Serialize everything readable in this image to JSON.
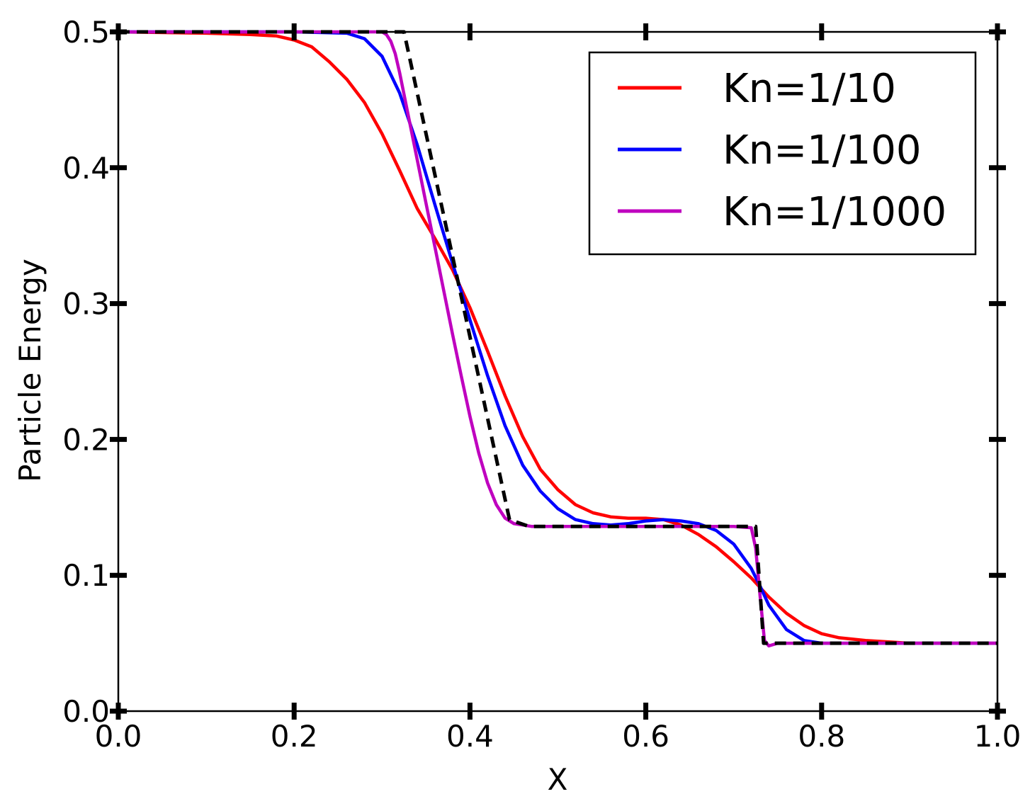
{
  "chart_data": {
    "type": "line",
    "title": "",
    "xlabel": "X",
    "ylabel": "Particle Energy",
    "xlim": [
      0.0,
      1.0
    ],
    "ylim": [
      0.0,
      0.5
    ],
    "x_ticks": [
      "0.0",
      "0.2",
      "0.4",
      "0.6",
      "0.8",
      "1.0"
    ],
    "y_ticks": [
      "0.0",
      "0.1",
      "0.2",
      "0.3",
      "0.4",
      "0.5"
    ],
    "grid": false,
    "legend_position": "top-right",
    "series": [
      {
        "name": "Kn=1/10",
        "color": "#ff0000",
        "style": "solid",
        "x": [
          0.0,
          0.1,
          0.15,
          0.18,
          0.2,
          0.22,
          0.24,
          0.26,
          0.28,
          0.3,
          0.32,
          0.34,
          0.36,
          0.38,
          0.4,
          0.42,
          0.44,
          0.46,
          0.48,
          0.5,
          0.52,
          0.54,
          0.56,
          0.58,
          0.6,
          0.62,
          0.64,
          0.66,
          0.68,
          0.7,
          0.72,
          0.74,
          0.76,
          0.78,
          0.8,
          0.82,
          0.85,
          0.9,
          1.0
        ],
        "y": [
          0.5,
          0.499,
          0.498,
          0.497,
          0.494,
          0.489,
          0.478,
          0.465,
          0.448,
          0.425,
          0.398,
          0.37,
          0.348,
          0.325,
          0.297,
          0.265,
          0.232,
          0.202,
          0.178,
          0.163,
          0.152,
          0.146,
          0.143,
          0.142,
          0.142,
          0.141,
          0.137,
          0.13,
          0.121,
          0.11,
          0.098,
          0.084,
          0.072,
          0.063,
          0.057,
          0.054,
          0.052,
          0.05,
          0.05
        ]
      },
      {
        "name": "Kn=1/100",
        "color": "#0000ff",
        "style": "solid",
        "x": [
          0.0,
          0.2,
          0.26,
          0.28,
          0.3,
          0.32,
          0.34,
          0.36,
          0.38,
          0.4,
          0.42,
          0.44,
          0.46,
          0.48,
          0.5,
          0.52,
          0.54,
          0.56,
          0.58,
          0.6,
          0.62,
          0.64,
          0.66,
          0.68,
          0.7,
          0.72,
          0.73,
          0.74,
          0.76,
          0.78,
          0.8,
          1.0
        ],
        "y": [
          0.5,
          0.5,
          0.499,
          0.495,
          0.482,
          0.455,
          0.417,
          0.373,
          0.33,
          0.288,
          0.247,
          0.21,
          0.181,
          0.162,
          0.149,
          0.141,
          0.138,
          0.137,
          0.138,
          0.14,
          0.141,
          0.14,
          0.138,
          0.133,
          0.123,
          0.105,
          0.092,
          0.078,
          0.06,
          0.052,
          0.05,
          0.05
        ]
      },
      {
        "name": "Kn=1/1000",
        "color": "#bf00bf",
        "style": "solid",
        "x": [
          0.0,
          0.3,
          0.305,
          0.31,
          0.315,
          0.32,
          0.33,
          0.34,
          0.35,
          0.36,
          0.37,
          0.38,
          0.39,
          0.4,
          0.41,
          0.42,
          0.43,
          0.44,
          0.45,
          0.46,
          0.47,
          0.5,
          0.6,
          0.7,
          0.72,
          0.725,
          0.73,
          0.735,
          0.74,
          0.75,
          1.0
        ],
        "y": [
          0.5,
          0.5,
          0.498,
          0.493,
          0.484,
          0.47,
          0.438,
          0.406,
          0.374,
          0.342,
          0.31,
          0.278,
          0.247,
          0.217,
          0.19,
          0.168,
          0.152,
          0.142,
          0.138,
          0.137,
          0.136,
          0.136,
          0.136,
          0.136,
          0.135,
          0.12,
          0.085,
          0.052,
          0.048,
          0.05,
          0.05
        ]
      },
      {
        "name": "",
        "color": "#000000",
        "style": "dashed",
        "x": [
          0.0,
          0.325,
          0.445,
          0.467,
          0.725,
          0.734,
          1.0
        ],
        "y": [
          0.5,
          0.5,
          0.141,
          0.136,
          0.136,
          0.05,
          0.05
        ]
      }
    ]
  }
}
